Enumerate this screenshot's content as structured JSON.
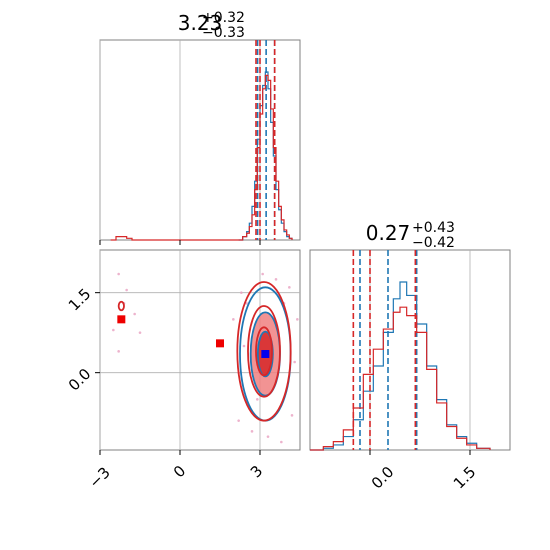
{
  "chart_data": [
    {
      "panel": "marginal_x",
      "type": "line",
      "title": {
        "value": "3.23",
        "plus": "+0.32",
        "minus": "−0.33"
      },
      "xlim": [
        -3,
        4.5
      ],
      "grid": true,
      "series": [
        {
          "color": "#1f77b4",
          "x": [
            2.2,
            2.35,
            2.5,
            2.6,
            2.7,
            2.8,
            2.9,
            3.0,
            3.1,
            3.2,
            3.3,
            3.4,
            3.5,
            3.6,
            3.7,
            3.8,
            3.9,
            4.0,
            4.1,
            4.2
          ],
          "y": [
            0.0,
            0.02,
            0.05,
            0.1,
            0.2,
            0.35,
            0.6,
            0.8,
            0.92,
            1.0,
            0.9,
            0.7,
            0.5,
            0.3,
            0.18,
            0.1,
            0.05,
            0.02,
            0.01,
            0.0
          ],
          "quantiles": [
            2.91,
            3.23,
            3.55
          ]
        },
        {
          "color": "#d62728",
          "x": [
            -2.6,
            -2.4,
            -2.2,
            -2.0,
            -1.8,
            2.2,
            2.35,
            2.5,
            2.6,
            2.7,
            2.8,
            2.9,
            3.0,
            3.1,
            3.2,
            3.3,
            3.4,
            3.5,
            3.6,
            3.7,
            3.8,
            3.9,
            4.0,
            4.1,
            4.2
          ],
          "y": [
            0.0,
            0.02,
            0.02,
            0.01,
            0.0,
            0.0,
            0.02,
            0.04,
            0.08,
            0.15,
            0.3,
            0.55,
            0.75,
            0.9,
            0.98,
            0.95,
            0.78,
            0.55,
            0.35,
            0.2,
            0.12,
            0.06,
            0.03,
            0.01,
            0.0
          ],
          "quantiles": [
            2.85,
            3.0,
            3.55
          ]
        }
      ]
    },
    {
      "panel": "marginal_y",
      "type": "line",
      "title": {
        "value": "0.27",
        "plus": "+0.43",
        "minus": "−0.42"
      },
      "xlim": [
        -0.9,
        2.1
      ],
      "xticks": [
        0.0,
        1.5
      ],
      "xtick_labels": [
        "0.0",
        "1.5"
      ],
      "grid": true,
      "series": [
        {
          "color": "#1f77b4",
          "x": [
            -0.9,
            -0.7,
            -0.55,
            -0.4,
            -0.25,
            -0.1,
            0.05,
            0.2,
            0.35,
            0.45,
            0.55,
            0.7,
            0.85,
            1.0,
            1.15,
            1.3,
            1.45,
            1.6,
            1.8
          ],
          "y": [
            0.0,
            0.01,
            0.03,
            0.08,
            0.18,
            0.35,
            0.5,
            0.7,
            0.9,
            1.0,
            0.92,
            0.75,
            0.5,
            0.3,
            0.15,
            0.08,
            0.04,
            0.01,
            0.0
          ],
          "quantiles": [
            -0.15,
            0.27,
            0.7
          ]
        },
        {
          "color": "#d62728",
          "x": [
            -0.9,
            -0.7,
            -0.55,
            -0.4,
            -0.25,
            -0.1,
            0.05,
            0.2,
            0.35,
            0.45,
            0.55,
            0.7,
            0.85,
            1.0,
            1.15,
            1.3,
            1.45,
            1.6,
            1.8
          ],
          "y": [
            0.0,
            0.02,
            0.05,
            0.12,
            0.25,
            0.45,
            0.6,
            0.72,
            0.82,
            0.85,
            0.8,
            0.7,
            0.48,
            0.28,
            0.14,
            0.07,
            0.03,
            0.01,
            0.0
          ],
          "quantiles": [
            -0.25,
            0.0,
            0.68
          ]
        }
      ]
    },
    {
      "panel": "joint",
      "type": "scatter",
      "xlim": [
        -3,
        4.5
      ],
      "ylim": [
        -1.45,
        2.3
      ],
      "xticks": [
        -3,
        0,
        3
      ],
      "xtick_labels": [
        "−3",
        "0",
        "3"
      ],
      "yticks": [
        0.0,
        1.5
      ],
      "ytick_labels": [
        "0.0",
        "1.5"
      ],
      "grid": true,
      "red_markers": [
        {
          "x": -2.2,
          "y": 1.0
        },
        {
          "x": 1.5,
          "y": 0.55
        }
      ],
      "blue_marker": {
        "x": 3.2,
        "y": 0.35
      },
      "contours": [
        {
          "color": "#1f77b4",
          "cx": 3.2,
          "cy": 0.35,
          "levels": [
            {
              "rx": 0.28,
              "ry": 0.42,
              "fill": "#d62728"
            },
            {
              "rx": 0.55,
              "ry": 0.78,
              "fill": "#f08080"
            },
            {
              "rx": 0.95,
              "ry": 1.25,
              "fill": "none"
            }
          ]
        },
        {
          "color": "#d62728",
          "cx": 3.15,
          "cy": 0.4,
          "levels": [
            {
              "rx": 0.3,
              "ry": 0.45,
              "fill": "none"
            },
            {
              "rx": 0.6,
              "ry": 0.85,
              "fill": "none"
            },
            {
              "rx": 1.0,
              "ry": 1.3,
              "fill": "none"
            }
          ]
        }
      ],
      "small_contour": {
        "x": -2.2,
        "y": 1.25,
        "rx": 0.1,
        "ry": 0.08,
        "color": "#d62728"
      },
      "scatter_points": [
        {
          "x": 2.3,
          "y": 1.5
        },
        {
          "x": 4.1,
          "y": 1.6
        },
        {
          "x": 2.2,
          "y": -0.9
        },
        {
          "x": 4.2,
          "y": -0.8
        },
        {
          "x": 3.1,
          "y": 1.85
        },
        {
          "x": 3.3,
          "y": -1.2
        },
        {
          "x": 2.4,
          "y": 0.5
        },
        {
          "x": 4.3,
          "y": 0.2
        },
        {
          "x": 3.6,
          "y": 1.75
        },
        {
          "x": 2.7,
          "y": -1.1
        },
        {
          "x": -2.3,
          "y": 1.85
        },
        {
          "x": -2.0,
          "y": 1.55
        },
        {
          "x": -2.5,
          "y": 0.8
        },
        {
          "x": -1.7,
          "y": 1.1
        },
        {
          "x": -2.3,
          "y": 0.4
        },
        {
          "x": -1.5,
          "y": 0.75
        },
        {
          "x": -2.1,
          "y": 1.3
        },
        {
          "x": 2.0,
          "y": 1.0
        },
        {
          "x": 4.4,
          "y": 1.0
        },
        {
          "x": 2.2,
          "y": 0.0
        },
        {
          "x": 3.8,
          "y": -1.3
        },
        {
          "x": 2.5,
          "y": 1.3
        },
        {
          "x": 3.9,
          "y": 1.3
        },
        {
          "x": 2.9,
          "y": -0.5
        }
      ]
    }
  ],
  "colors": {
    "blue": "#1f77b4",
    "red": "#d62728",
    "light_red": "#f08080",
    "pink_dots": "#e8a0c0",
    "marker_red": "#ee0000",
    "marker_blue": "#0000ee"
  }
}
